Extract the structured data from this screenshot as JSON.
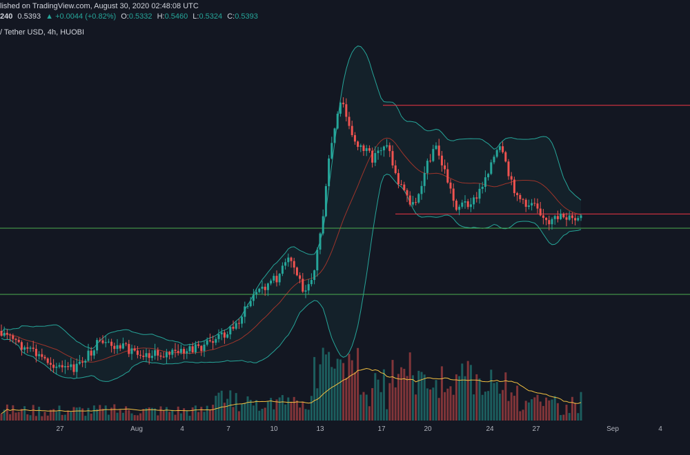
{
  "header": {
    "published": "lished on TradingView.com, August 30, 2020 02:48:08 UTC",
    "last_id": "240",
    "last_price": "0.5393",
    "change": "▲ +0.0044 (+0.82%)",
    "o_label": "O:",
    "o_value": "0.5332",
    "h_label": "H:",
    "h_value": "0.5460",
    "l_label": "L:",
    "l_value": "0.5324",
    "c_label": "C:",
    "c_value": "0.5393"
  },
  "symbol_line": "/ Tether USD, 4h, HUOBI",
  "colors": {
    "background": "#131722",
    "up": "#26a69a",
    "down": "#ef5350",
    "green_level": "#4caf50",
    "red_level": "#f23645",
    "bands": "#26a69a",
    "basis": "#c0392b",
    "volume_ma": "#f5c242"
  },
  "chart_data": {
    "type": "candlestick",
    "x_ticks": [
      "27",
      "Aug",
      "4",
      "7",
      "10",
      "13",
      "17",
      "20",
      "24",
      "27",
      "Sep",
      "4"
    ],
    "indicators": [
      "bollinger_bands",
      "volume",
      "volume_moving_average"
    ],
    "horizontal_levels": [
      {
        "color": "green",
        "price_level": 0.47
      },
      {
        "color": "green",
        "price_level": 0.4
      },
      {
        "color": "red",
        "price_level": 0.6
      },
      {
        "color": "red",
        "price_level": 0.485
      }
    ],
    "last_candle": {
      "open": 0.5332,
      "high": 0.546,
      "low": 0.5324,
      "close": 0.5393
    }
  }
}
